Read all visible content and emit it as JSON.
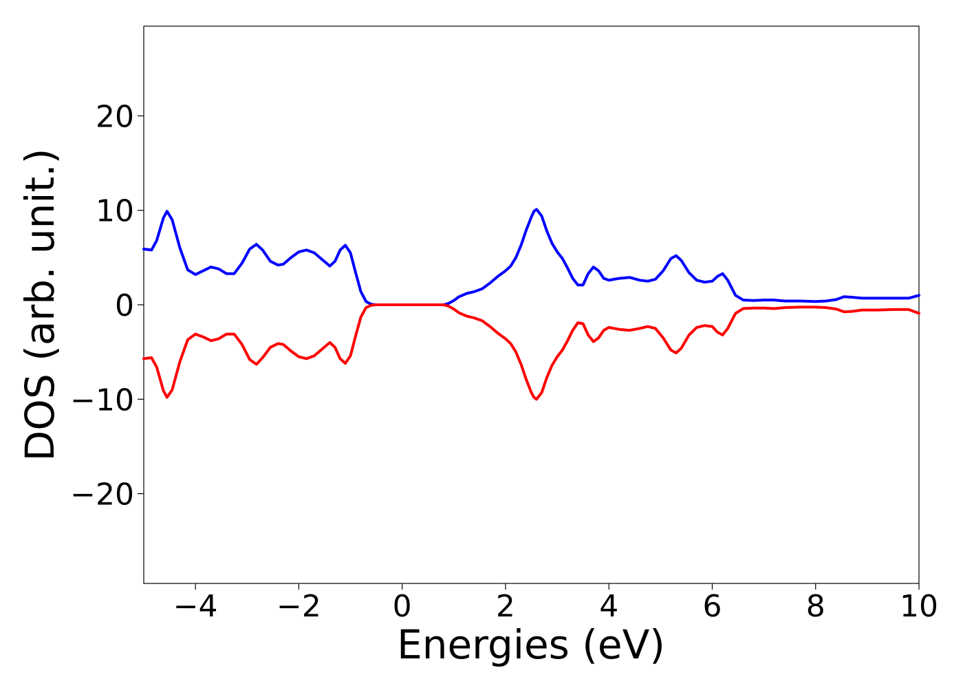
{
  "chart_data": {
    "type": "line",
    "title": "",
    "xlabel": "Energies (eV)",
    "ylabel": "DOS (arb. unit.)",
    "xlim": [
      -5,
      10
    ],
    "ylim": [
      -29.5,
      29.5
    ],
    "xticks": [
      -4,
      -2,
      0,
      2,
      4,
      6,
      8,
      10
    ],
    "xtick_labels": [
      "−4",
      "−2",
      "0",
      "2",
      "4",
      "6",
      "8",
      "10"
    ],
    "yticks": [
      20,
      10,
      0,
      -10,
      -20
    ],
    "ytick_labels": [
      "20",
      "10",
      "0",
      "−10",
      "−20"
    ],
    "grid": false,
    "legend": "none",
    "series": [
      {
        "color": "#0000ff",
        "x": [
          -5.0,
          -4.85,
          -4.75,
          -4.62,
          -4.55,
          -4.45,
          -4.3,
          -4.15,
          -4.0,
          -3.85,
          -3.7,
          -3.55,
          -3.4,
          -3.25,
          -3.1,
          -2.95,
          -2.82,
          -2.7,
          -2.55,
          -2.4,
          -2.3,
          -2.15,
          -2.0,
          -1.85,
          -1.7,
          -1.55,
          -1.4,
          -1.3,
          -1.2,
          -1.1,
          -1.0,
          -0.9,
          -0.8,
          -0.7,
          -0.6,
          -0.5,
          0.0,
          0.5,
          0.8,
          0.9,
          1.0,
          1.1,
          1.25,
          1.4,
          1.55,
          1.7,
          1.85,
          2.0,
          2.1,
          2.2,
          2.3,
          2.4,
          2.5,
          2.55,
          2.6,
          2.7,
          2.8,
          2.9,
          3.0,
          3.1,
          3.2,
          3.3,
          3.4,
          3.5,
          3.6,
          3.7,
          3.8,
          3.9,
          4.0,
          4.1,
          4.2,
          4.4,
          4.6,
          4.75,
          4.9,
          5.05,
          5.2,
          5.3,
          5.4,
          5.55,
          5.7,
          5.85,
          6.0,
          6.1,
          6.2,
          6.3,
          6.45,
          6.6,
          6.8,
          7.0,
          7.2,
          7.4,
          7.7,
          8.0,
          8.2,
          8.4,
          8.55,
          8.7,
          8.9,
          9.2,
          9.5,
          9.8,
          10.0
        ],
        "y": [
          5.9,
          5.8,
          6.8,
          9.2,
          9.9,
          9.0,
          6.0,
          3.7,
          3.2,
          3.6,
          4.0,
          3.8,
          3.3,
          3.3,
          4.4,
          5.9,
          6.4,
          5.8,
          4.6,
          4.2,
          4.3,
          5.0,
          5.6,
          5.8,
          5.5,
          4.8,
          4.1,
          4.6,
          5.8,
          6.3,
          5.5,
          3.4,
          1.4,
          0.35,
          0.05,
          0.0,
          0.0,
          0.0,
          0.0,
          0.15,
          0.45,
          0.85,
          1.2,
          1.4,
          1.7,
          2.3,
          3.0,
          3.6,
          4.1,
          5.0,
          6.3,
          7.9,
          9.3,
          9.9,
          10.1,
          9.4,
          7.8,
          6.5,
          5.6,
          4.9,
          3.9,
          2.8,
          2.1,
          2.1,
          3.3,
          4.0,
          3.6,
          2.8,
          2.6,
          2.7,
          2.8,
          2.9,
          2.6,
          2.5,
          2.7,
          3.6,
          4.9,
          5.2,
          4.7,
          3.4,
          2.6,
          2.4,
          2.5,
          3.0,
          3.3,
          2.6,
          1.0,
          0.5,
          0.45,
          0.5,
          0.5,
          0.4,
          0.4,
          0.35,
          0.4,
          0.55,
          0.85,
          0.8,
          0.7,
          0.7,
          0.7,
          0.7,
          1.0
        ]
      },
      {
        "color": "#ff0000",
        "x": [
          -5.0,
          -4.85,
          -4.75,
          -4.62,
          -4.55,
          -4.45,
          -4.3,
          -4.15,
          -4.0,
          -3.85,
          -3.7,
          -3.55,
          -3.4,
          -3.25,
          -3.1,
          -2.95,
          -2.82,
          -2.7,
          -2.55,
          -2.4,
          -2.3,
          -2.15,
          -2.0,
          -1.85,
          -1.7,
          -1.55,
          -1.4,
          -1.3,
          -1.2,
          -1.1,
          -1.0,
          -0.9,
          -0.8,
          -0.7,
          -0.6,
          -0.5,
          0.0,
          0.5,
          0.8,
          0.9,
          1.0,
          1.1,
          1.25,
          1.4,
          1.55,
          1.7,
          1.85,
          2.0,
          2.1,
          2.2,
          2.3,
          2.4,
          2.5,
          2.55,
          2.6,
          2.7,
          2.8,
          2.9,
          3.0,
          3.1,
          3.2,
          3.3,
          3.4,
          3.5,
          3.6,
          3.7,
          3.8,
          3.9,
          4.0,
          4.1,
          4.2,
          4.4,
          4.6,
          4.75,
          4.9,
          5.05,
          5.2,
          5.3,
          5.4,
          5.55,
          5.7,
          5.85,
          6.0,
          6.1,
          6.2,
          6.3,
          6.45,
          6.6,
          6.8,
          7.0,
          7.2,
          7.4,
          7.7,
          8.0,
          8.2,
          8.4,
          8.55,
          8.7,
          8.9,
          9.2,
          9.5,
          9.8,
          10.0
        ],
        "y": [
          -5.7,
          -5.6,
          -6.6,
          -9.1,
          -9.8,
          -9.0,
          -6.0,
          -3.7,
          -3.1,
          -3.4,
          -3.8,
          -3.6,
          -3.1,
          -3.1,
          -4.2,
          -5.8,
          -6.3,
          -5.6,
          -4.5,
          -4.1,
          -4.2,
          -4.9,
          -5.5,
          -5.7,
          -5.4,
          -4.7,
          -4.0,
          -4.5,
          -5.7,
          -6.2,
          -5.4,
          -3.3,
          -1.3,
          -0.3,
          -0.05,
          0.0,
          0.0,
          0.0,
          0.0,
          -0.15,
          -0.45,
          -0.85,
          -1.2,
          -1.4,
          -1.7,
          -2.3,
          -3.0,
          -3.6,
          -4.1,
          -5.0,
          -6.3,
          -7.9,
          -9.3,
          -9.8,
          -10.0,
          -9.3,
          -7.7,
          -6.4,
          -5.5,
          -4.8,
          -3.8,
          -2.7,
          -1.9,
          -2.0,
          -3.2,
          -3.9,
          -3.5,
          -2.7,
          -2.4,
          -2.5,
          -2.6,
          -2.7,
          -2.5,
          -2.3,
          -2.5,
          -3.5,
          -4.8,
          -5.1,
          -4.6,
          -3.2,
          -2.4,
          -2.2,
          -2.3,
          -2.9,
          -3.2,
          -2.5,
          -0.9,
          -0.4,
          -0.35,
          -0.35,
          -0.4,
          -0.3,
          -0.25,
          -0.25,
          -0.3,
          -0.45,
          -0.75,
          -0.7,
          -0.55,
          -0.55,
          -0.5,
          -0.5,
          -0.9
        ]
      }
    ]
  }
}
